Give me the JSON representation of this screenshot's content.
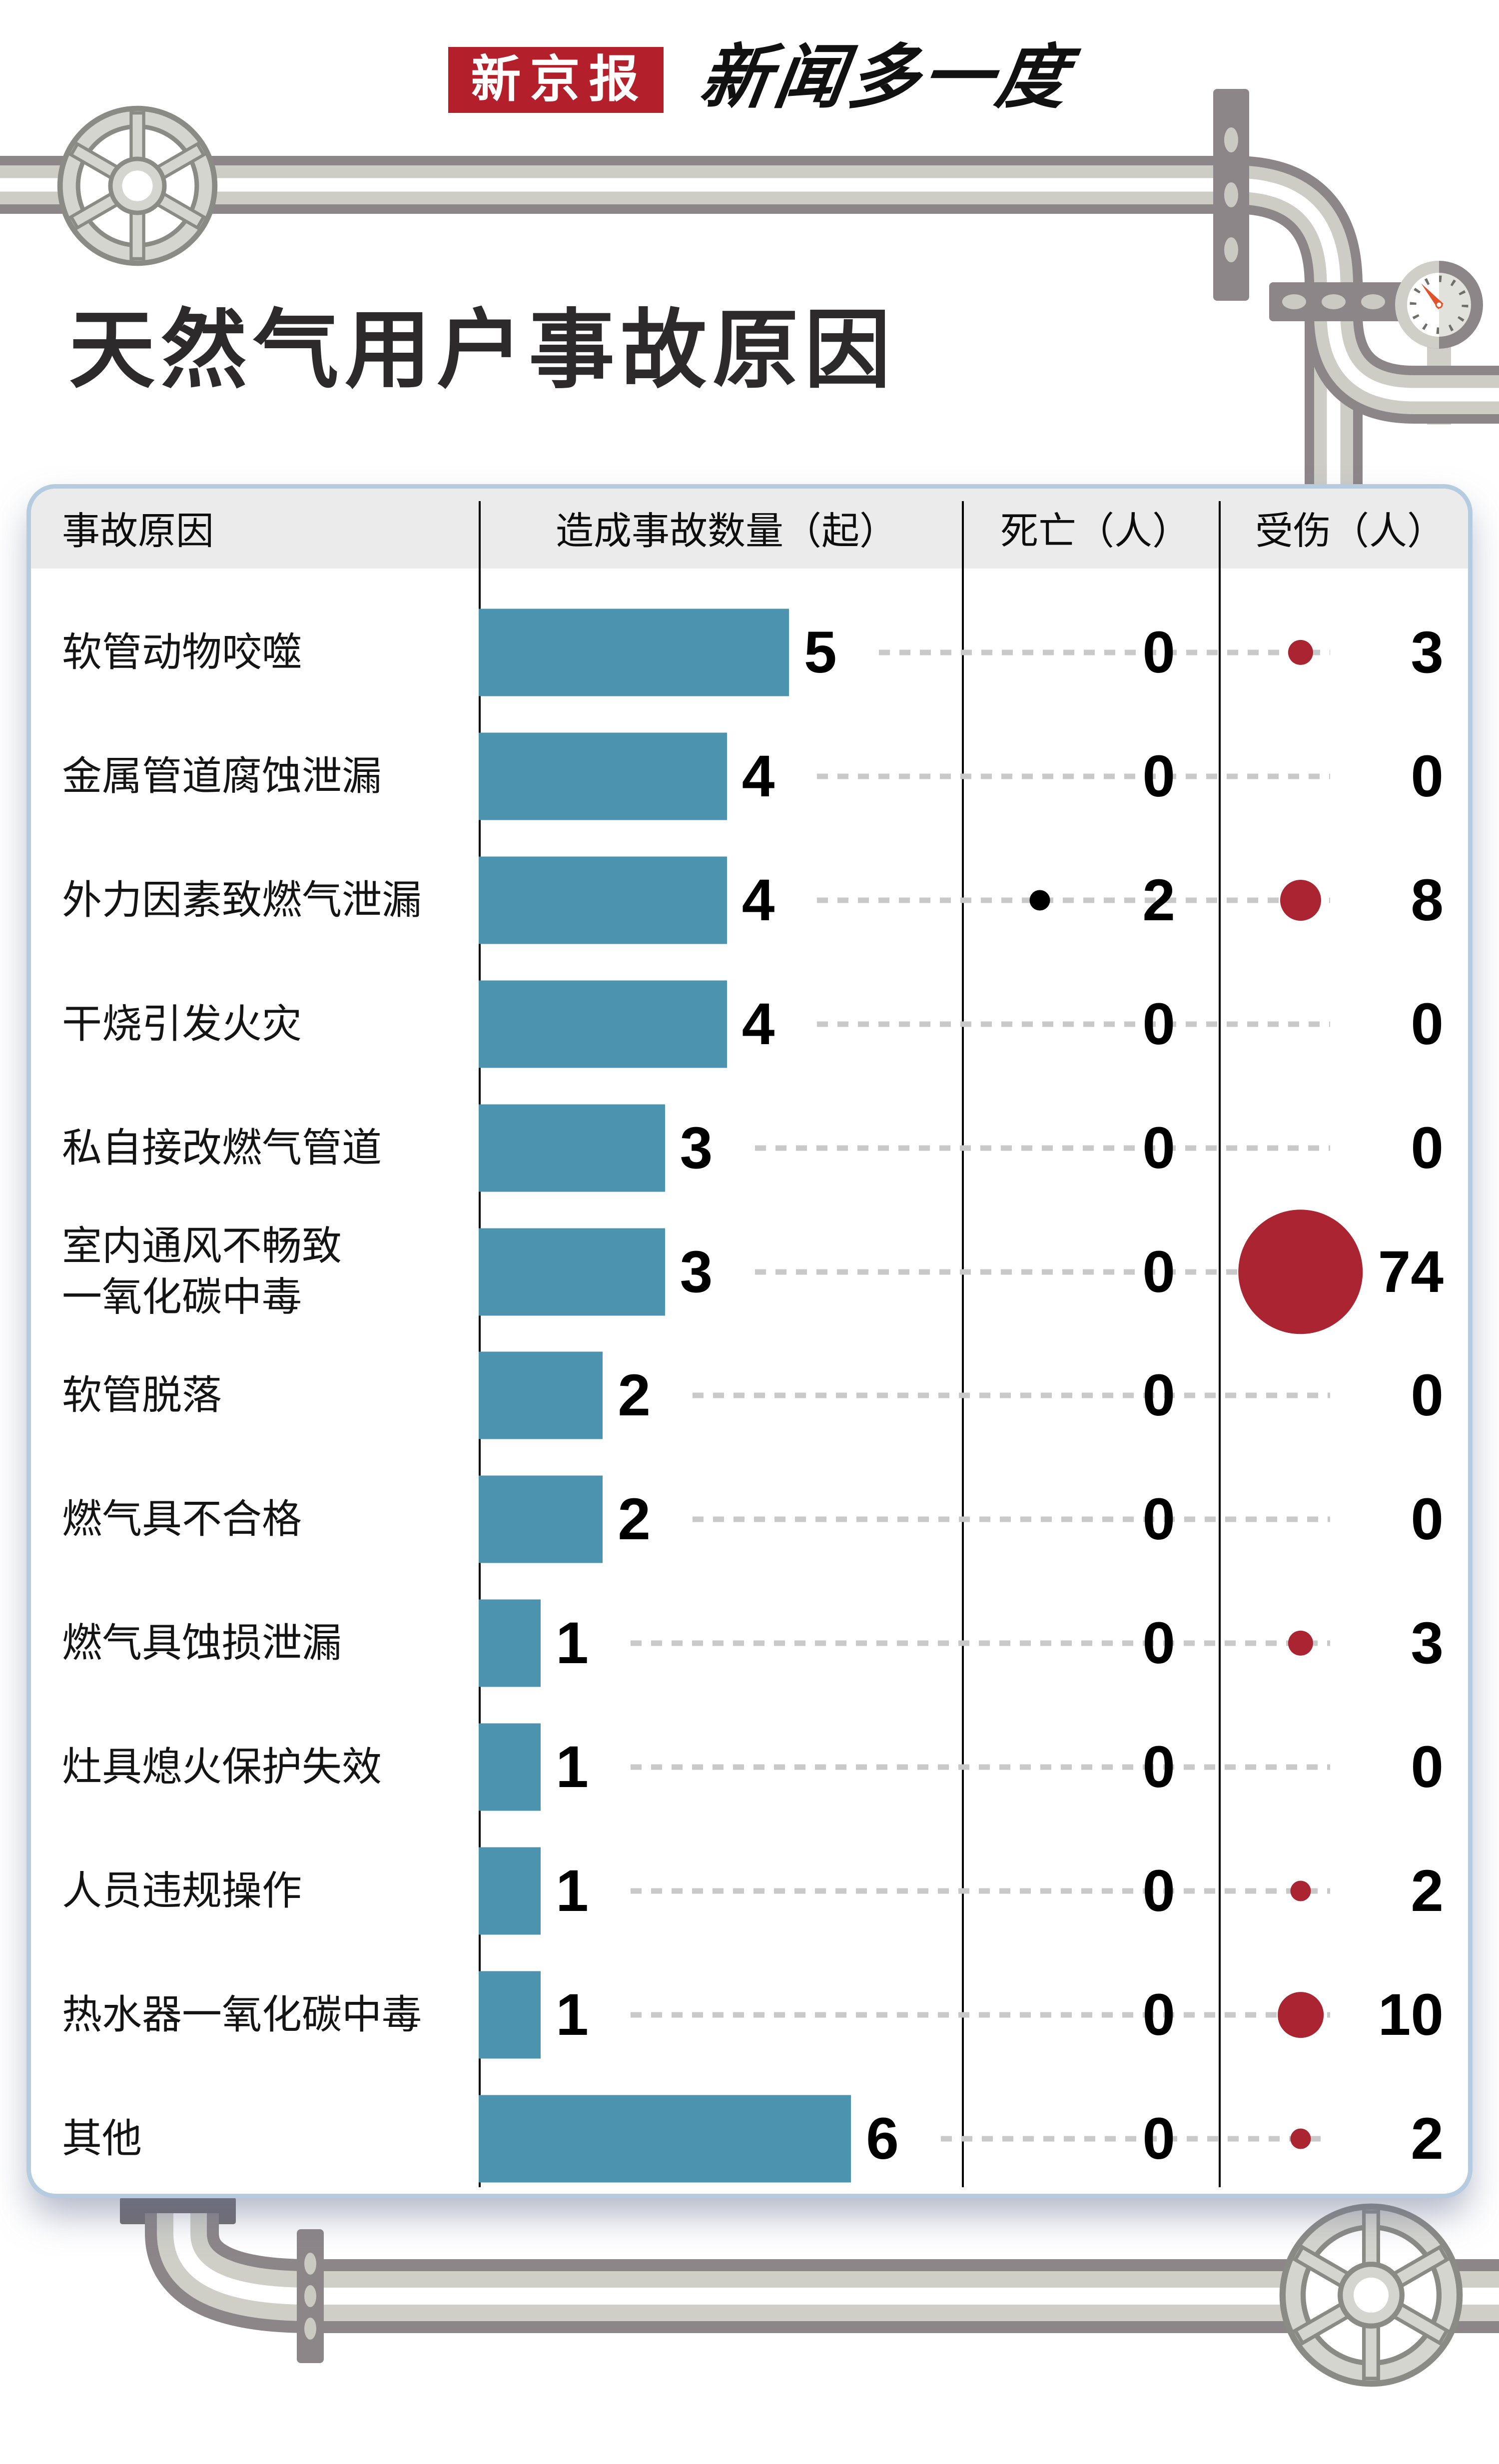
{
  "masthead": {
    "logo": "新京报",
    "tagline": "新闻多一度"
  },
  "title": "天然气用户事故原因",
  "table": {
    "columns": [
      "事故原因",
      "造成事故数量（起）",
      "死亡（人）",
      "受伤（人）"
    ],
    "rows": [
      {
        "cause": "软管动物咬噬",
        "accidents": 5,
        "deaths": 0,
        "injuries": 3
      },
      {
        "cause": "金属管道腐蚀泄漏",
        "accidents": 4,
        "deaths": 0,
        "injuries": 0
      },
      {
        "cause": "外力因素致燃气泄漏",
        "accidents": 4,
        "deaths": 2,
        "injuries": 8
      },
      {
        "cause": "干烧引发火灾",
        "accidents": 4,
        "deaths": 0,
        "injuries": 0
      },
      {
        "cause": "私自接改燃气管道",
        "accidents": 3,
        "deaths": 0,
        "injuries": 0
      },
      {
        "cause": "室内通风不畅致\n一氧化碳中毒",
        "accidents": 3,
        "deaths": 0,
        "injuries": 74
      },
      {
        "cause": "软管脱落",
        "accidents": 2,
        "deaths": 0,
        "injuries": 0
      },
      {
        "cause": "燃气具不合格",
        "accidents": 2,
        "deaths": 0,
        "injuries": 0
      },
      {
        "cause": "燃气具蚀损泄漏",
        "accidents": 1,
        "deaths": 0,
        "injuries": 3
      },
      {
        "cause": "灶具熄火保护失效",
        "accidents": 1,
        "deaths": 0,
        "injuries": 0
      },
      {
        "cause": "人员违规操作",
        "accidents": 1,
        "deaths": 0,
        "injuries": 2
      },
      {
        "cause": "热水器一氧化碳中毒",
        "accidents": 1,
        "deaths": 0,
        "injuries": 10
      },
      {
        "cause": "其他",
        "accidents": 6,
        "deaths": 0,
        "injuries": 2
      }
    ]
  },
  "colors": {
    "bar_blue": "#4b93ae",
    "dot_red": "#ab2431",
    "dot_black": "#000000",
    "logo_red": "#b31f2a",
    "pipe_dark": "#8d8689",
    "pipe_light": "#cdcdc6",
    "card_border": "#b5cbe0",
    "header_bg": "#ebebeb",
    "needle_orange": "#e2532c"
  },
  "chart_data": {
    "type": "bar",
    "title": "天然气用户事故原因",
    "columns": [
      "事故原因",
      "造成事故数量（起）",
      "死亡（人）",
      "受伤（人）"
    ],
    "categories": [
      "软管动物咬噬",
      "金属管道腐蚀泄漏",
      "外力因素致燃气泄漏",
      "干烧引发火灾",
      "私自接改燃气管道",
      "室内通风不畅致一氧化碳中毒",
      "软管脱落",
      "燃气具不合格",
      "燃气具蚀损泄漏",
      "灶具熄火保护失效",
      "人员违规操作",
      "热水器一氧化碳中毒",
      "其他"
    ],
    "series": [
      {
        "name": "造成事故数量（起）",
        "values": [
          5,
          4,
          4,
          4,
          3,
          3,
          2,
          2,
          1,
          1,
          1,
          1,
          6
        ]
      },
      {
        "name": "死亡（人）",
        "values": [
          0,
          0,
          2,
          0,
          0,
          0,
          0,
          0,
          0,
          0,
          0,
          0,
          0
        ]
      },
      {
        "name": "受伤（人）",
        "values": [
          3,
          0,
          8,
          0,
          0,
          74,
          0,
          0,
          3,
          0,
          2,
          10,
          2
        ]
      }
    ],
    "xlabel": "",
    "ylabel": "",
    "legend": "none",
    "grid": "dotted-row-guides",
    "orientation": "horizontal-bars",
    "bubble_scale": "radius = 14.5 * sqrt(value)"
  }
}
